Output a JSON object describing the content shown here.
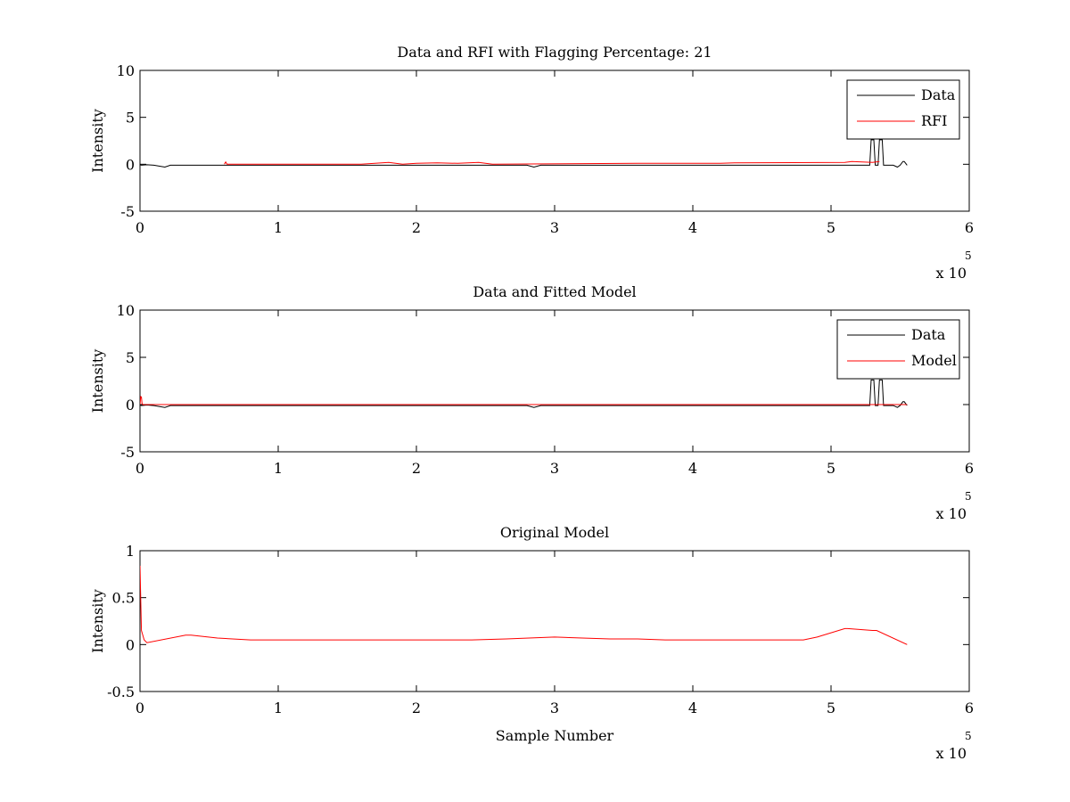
{
  "colors": {
    "data": "#000000",
    "rfi": "#ff0000",
    "model": "#ff0000",
    "axes": "#000000",
    "background": "#ffffff"
  },
  "chart_data": [
    {
      "type": "line",
      "title": "Data and RFI with Flagging Percentage: 21",
      "xlabel": "",
      "ylabel": "Intensity",
      "xlim": [
        0,
        600000
      ],
      "ylim": [
        -5,
        10
      ],
      "xticks": [
        0,
        1,
        2,
        3,
        4,
        5,
        6
      ],
      "xtick_labels": [
        "0",
        "1",
        "2",
        "3",
        "4",
        "5",
        "6"
      ],
      "yticks": [
        -5,
        0,
        5,
        10
      ],
      "ytick_labels": [
        "-5",
        "0",
        "5",
        "10"
      ],
      "x_multiplier_label": "x 10",
      "x_multiplier_exponent": "5",
      "grid": false,
      "legend": {
        "placement": "top-right",
        "entries": [
          "Data",
          "RFI"
        ]
      },
      "series": [
        {
          "name": "Data",
          "color": "#000000",
          "x": [
            0,
            1000,
            5000,
            10000,
            18000,
            22000,
            26000,
            60000,
            150000,
            280000,
            285000,
            290000,
            400000,
            500000,
            528000,
            529000,
            531000,
            532000,
            534000,
            535000,
            537000,
            538000,
            545000,
            548000,
            550000,
            552000,
            553000,
            555000
          ],
          "y": [
            -0.05,
            -0.1,
            -0.05,
            -0.1,
            -0.3,
            -0.1,
            -0.1,
            -0.1,
            -0.1,
            -0.1,
            -0.3,
            -0.1,
            -0.1,
            -0.1,
            -0.1,
            2.6,
            2.6,
            -0.1,
            -0.1,
            2.6,
            2.6,
            -0.1,
            -0.1,
            -0.3,
            -0.1,
            0.3,
            0.3,
            -0.1
          ]
        },
        {
          "name": "RFI",
          "color": "#ff0000",
          "x": [
            61000,
            62000,
            63000,
            160000,
            180000,
            190000,
            200000,
            215000,
            230000,
            245000,
            250000,
            255000,
            360000,
            370000,
            420000,
            430000,
            510000,
            515000,
            530000,
            535000
          ],
          "y": [
            0,
            0.25,
            0,
            0,
            0.2,
            0,
            0.1,
            0.15,
            0.1,
            0.2,
            0.1,
            0,
            0.1,
            0.1,
            0.1,
            0.15,
            0.2,
            0.3,
            0.2,
            0.3
          ]
        }
      ]
    },
    {
      "type": "line",
      "title": "Data and Fitted Model",
      "xlabel": "",
      "ylabel": "Intensity",
      "xlim": [
        0,
        600000
      ],
      "ylim": [
        -5,
        10
      ],
      "xticks": [
        0,
        1,
        2,
        3,
        4,
        5,
        6
      ],
      "xtick_labels": [
        "0",
        "1",
        "2",
        "3",
        "4",
        "5",
        "6"
      ],
      "yticks": [
        -5,
        0,
        5,
        10
      ],
      "ytick_labels": [
        "-5",
        "0",
        "5",
        "10"
      ],
      "x_multiplier_label": "x 10",
      "x_multiplier_exponent": "5",
      "grid": false,
      "legend": {
        "placement": "top-right",
        "entries": [
          "Data",
          "Model"
        ]
      },
      "series": [
        {
          "name": "Data",
          "color": "#000000",
          "x": [
            0,
            1000,
            5000,
            10000,
            18000,
            22000,
            26000,
            60000,
            150000,
            280000,
            285000,
            290000,
            400000,
            500000,
            528000,
            529000,
            531000,
            532000,
            534000,
            535000,
            537000,
            538000,
            545000,
            548000,
            550000,
            552000,
            553000,
            555000
          ],
          "y": [
            -0.05,
            -0.1,
            -0.05,
            -0.1,
            -0.3,
            -0.1,
            -0.1,
            -0.1,
            -0.1,
            -0.1,
            -0.3,
            -0.1,
            -0.1,
            -0.1,
            -0.1,
            2.6,
            2.6,
            -0.1,
            -0.1,
            2.6,
            2.6,
            -0.1,
            -0.1,
            -0.3,
            -0.1,
            0.3,
            0.3,
            -0.1
          ]
        },
        {
          "name": "Model",
          "color": "#ff0000",
          "x": [
            0,
            500,
            1000,
            1500,
            2000,
            3000,
            10000,
            100000,
            200000,
            300000,
            400000,
            500000,
            555000
          ],
          "y": [
            0,
            0.85,
            0.8,
            0.1,
            0,
            0,
            0,
            0,
            0,
            0,
            0,
            0,
            0
          ]
        }
      ]
    },
    {
      "type": "line",
      "title": "Original Model",
      "xlabel": "Sample Number",
      "ylabel": "Intensity",
      "xlim": [
        0,
        600000
      ],
      "ylim": [
        -0.5,
        1
      ],
      "xticks": [
        0,
        1,
        2,
        3,
        4,
        5,
        6
      ],
      "xtick_labels": [
        "0",
        "1",
        "2",
        "3",
        "4",
        "5",
        "6"
      ],
      "yticks": [
        -0.5,
        0,
        0.5,
        1
      ],
      "ytick_labels": [
        "-0.5",
        "0",
        "0.5",
        "1"
      ],
      "x_multiplier_label": "x 10",
      "x_multiplier_exponent": "5",
      "grid": false,
      "legend": null,
      "series": [
        {
          "color": "#ff0000",
          "x": [
            0,
            1000,
            3000,
            5000,
            33000,
            37000,
            56000,
            80000,
            100000,
            120000,
            140000,
            160000,
            180000,
            200000,
            220000,
            240000,
            265000,
            300000,
            320000,
            340000,
            360000,
            380000,
            400000,
            420000,
            440000,
            460000,
            480000,
            490000,
            510000,
            512000,
            530000,
            533000,
            555000
          ],
          "y": [
            0.84,
            0.15,
            0.05,
            0.02,
            0.1,
            0.1,
            0.07,
            0.05,
            0.05,
            0.05,
            0.05,
            0.05,
            0.05,
            0.05,
            0.05,
            0.05,
            0.06,
            0.08,
            0.07,
            0.06,
            0.06,
            0.05,
            0.05,
            0.05,
            0.05,
            0.05,
            0.05,
            0.08,
            0.17,
            0.17,
            0.15,
            0.15,
            0
          ]
        }
      ]
    }
  ]
}
